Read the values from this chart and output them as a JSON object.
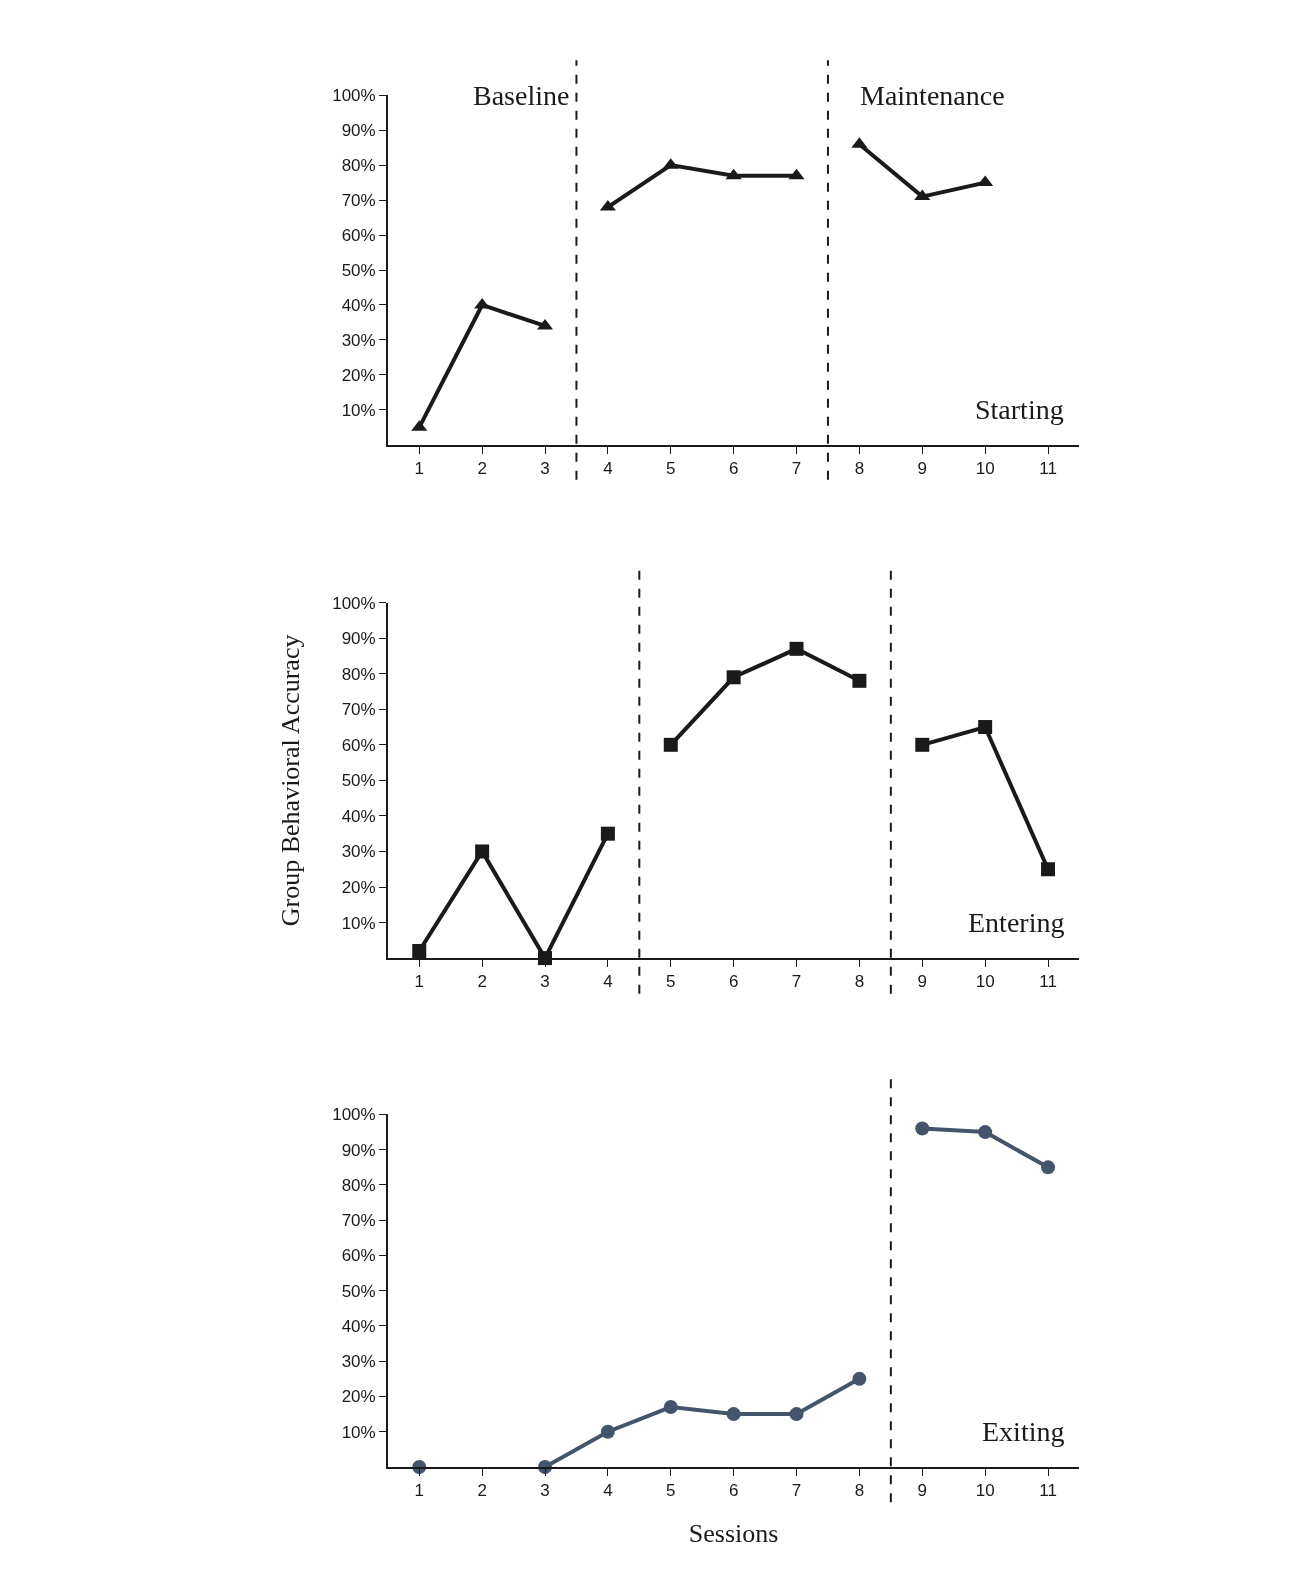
{
  "chart_data": [
    {
      "type": "line",
      "marker": "triangle",
      "x": [
        1,
        2,
        3,
        4,
        5,
        6,
        7,
        8,
        9,
        10
      ],
      "xlim": [
        0.5,
        11.5
      ],
      "xticks": [
        1,
        2,
        3,
        4,
        5,
        6,
        7,
        8,
        9,
        10,
        11
      ],
      "ylim": [
        0,
        100
      ],
      "yticks": [
        {
          "value": 10,
          "label": "10%"
        },
        {
          "value": 20,
          "label": "20%"
        },
        {
          "value": 30,
          "label": "30%"
        },
        {
          "value": 40,
          "label": "40%"
        },
        {
          "value": 50,
          "label": "50%"
        },
        {
          "value": 60,
          "label": "60%"
        },
        {
          "value": 70,
          "label": "70%"
        },
        {
          "value": 80,
          "label": "80%"
        },
        {
          "value": 90,
          "label": "90%"
        },
        {
          "value": 100,
          "label": "100%"
        }
      ],
      "series": [
        {
          "color": "#1a1a1a",
          "values": [
            5,
            40,
            34,
            null,
            null,
            null,
            null,
            null,
            null,
            null
          ]
        },
        {
          "color": "#1a1a1a",
          "values": [
            null,
            null,
            null,
            68,
            80,
            77,
            77,
            null,
            null,
            null
          ]
        },
        {
          "color": "#1a1a1a",
          "values": [
            null,
            null,
            null,
            null,
            null,
            null,
            null,
            86,
            71,
            75
          ]
        }
      ],
      "ref_lines": [
        {
          "axis": "x",
          "value": 3.5,
          "color": "#1a1a1a",
          "line_style": "dashed"
        },
        {
          "axis": "x",
          "value": 7.5,
          "color": "#1a1a1a",
          "line_style": "dashed"
        }
      ],
      "annotations": [
        "Baseline",
        "Maintenance",
        "Starting"
      ]
    },
    {
      "type": "line",
      "marker": "square",
      "x": [
        1,
        2,
        3,
        4,
        5,
        6,
        7,
        8,
        9,
        10,
        11
      ],
      "xlim": [
        0.5,
        11.5
      ],
      "xticks": [
        1,
        2,
        3,
        4,
        5,
        6,
        7,
        8,
        9,
        10,
        11
      ],
      "ylim": [
        0,
        100
      ],
      "yticks": [
        {
          "value": 10,
          "label": "10%"
        },
        {
          "value": 20,
          "label": "20%"
        },
        {
          "value": 30,
          "label": "30%"
        },
        {
          "value": 40,
          "label": "40%"
        },
        {
          "value": 50,
          "label": "50%"
        },
        {
          "value": 60,
          "label": "60%"
        },
        {
          "value": 70,
          "label": "70%"
        },
        {
          "value": 80,
          "label": "80%"
        },
        {
          "value": 90,
          "label": "90%"
        },
        {
          "value": 100,
          "label": "100%"
        }
      ],
      "ylabel": "Group Behavioral Accuracy",
      "series": [
        {
          "color": "#1a1a1a",
          "values": [
            2,
            30,
            0,
            35,
            null,
            null,
            null,
            null,
            null,
            null,
            null
          ]
        },
        {
          "color": "#1a1a1a",
          "values": [
            null,
            null,
            null,
            null,
            60,
            79,
            87,
            78,
            null,
            null,
            null
          ]
        },
        {
          "color": "#1a1a1a",
          "values": [
            null,
            null,
            null,
            null,
            null,
            null,
            null,
            null,
            60,
            65,
            25
          ]
        }
      ],
      "ref_lines": [
        {
          "axis": "x",
          "value": 4.5,
          "color": "#1a1a1a",
          "line_style": "dashed"
        },
        {
          "axis": "x",
          "value": 8.5,
          "color": "#1a1a1a",
          "line_style": "dashed"
        }
      ],
      "annotations": [
        "Entering"
      ]
    },
    {
      "type": "line",
      "marker": "circle",
      "x": [
        1,
        2,
        3,
        4,
        5,
        6,
        7,
        8,
        9,
        10,
        11
      ],
      "xlim": [
        0.5,
        11.5
      ],
      "xticks": [
        1,
        2,
        3,
        4,
        5,
        6,
        7,
        8,
        9,
        10,
        11
      ],
      "ylim": [
        0,
        100
      ],
      "yticks": [
        {
          "value": 10,
          "label": "10%"
        },
        {
          "value": 20,
          "label": "20%"
        },
        {
          "value": 30,
          "label": "30%"
        },
        {
          "value": 40,
          "label": "40%"
        },
        {
          "value": 50,
          "label": "50%"
        },
        {
          "value": 60,
          "label": "60%"
        },
        {
          "value": 70,
          "label": "70%"
        },
        {
          "value": 80,
          "label": "80%"
        },
        {
          "value": 90,
          "label": "90%"
        },
        {
          "value": 100,
          "label": "100%"
        }
      ],
      "xlabel": "Sessions",
      "series": [
        {
          "color": "#44546a",
          "values": [
            0,
            null,
            0,
            10,
            17,
            15,
            15,
            25,
            null,
            null,
            null
          ]
        },
        {
          "color": "#44546a",
          "values": [
            null,
            null,
            null,
            null,
            null,
            null,
            null,
            null,
            96,
            95,
            85
          ]
        }
      ],
      "ref_lines": [
        {
          "axis": "x",
          "value": 8.5,
          "color": "#1a1a1a",
          "line_style": "dashed"
        }
      ],
      "annotations": [
        "Exiting"
      ]
    }
  ]
}
